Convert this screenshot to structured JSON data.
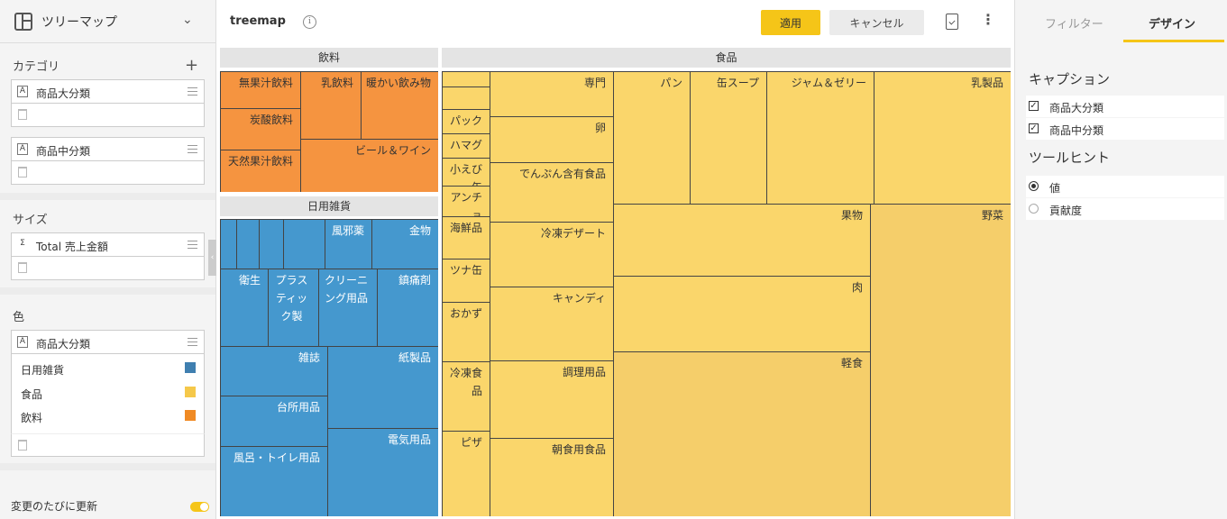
{
  "left_panel": {
    "header_title": "ツリーマップ",
    "category": {
      "title": "カテゴリ",
      "fields": [
        "商品大分類",
        "商品中分類"
      ]
    },
    "size": {
      "title": "サイズ",
      "field": "Total 売上金額"
    },
    "color": {
      "title": "色",
      "field": "商品大分類",
      "legend": [
        {
          "label": "日用雑貨",
          "color": "#3f7fb0"
        },
        {
          "label": "食品",
          "color": "#f5c84a"
        },
        {
          "label": "飲料",
          "color": "#f08a24"
        }
      ]
    },
    "auto_update": "変更のたびに更新",
    "field_type_icon": "A",
    "sum_icon": "Σ"
  },
  "toolbar": {
    "title": "treemap",
    "info_symbol": "i",
    "apply": "適用",
    "cancel": "キャンセル",
    "more_symbol": "⋮"
  },
  "chart_data": {
    "type": "treemap",
    "groups": [
      {
        "name": "飲料",
        "color": "#f59440",
        "items": [
          "無果汁飲料",
          "乳飲料",
          "暖かい飲み物",
          "炭酸飲料",
          "ビール＆ワイン",
          "天然果汁飲料"
        ]
      },
      {
        "name": "日用雑貨",
        "color": "#4598ce",
        "items": [
          "風邪薬",
          "金物",
          "衛生",
          "プラスティック製",
          "クリーニング用品",
          "鎮痛剤",
          "雑誌",
          "紙製品",
          "台所用品",
          "電気用品",
          "風呂・トイレ用品"
        ]
      },
      {
        "name": "食品",
        "color": "#fad66b",
        "items": [
          "専門",
          "パン",
          "缶スープ",
          "ジャム＆ゼリー",
          "乳製品",
          "パック野",
          "卵",
          "ハマグリ",
          "小えび缶",
          "でんぷん含有食品",
          "アンチョ",
          "海鮮品",
          "冷凍デザート",
          "果物",
          "野菜",
          "ツナ缶",
          "キャンディ",
          "肉",
          "おかず",
          "冷凍食品",
          "調理用品",
          "軽食",
          "ピザ",
          "朝食用食品"
        ]
      }
    ]
  },
  "right_panel": {
    "tabs": [
      "フィルター",
      "デザイン"
    ],
    "caption_title": "キャプション",
    "caption_options": [
      "商品大分類",
      "商品中分類"
    ],
    "tooltip_title": "ツールヒント",
    "tooltip_options": [
      "値",
      "貢献度"
    ],
    "check_mark": "✓"
  },
  "handle_left": "‹",
  "handle_right": "›"
}
